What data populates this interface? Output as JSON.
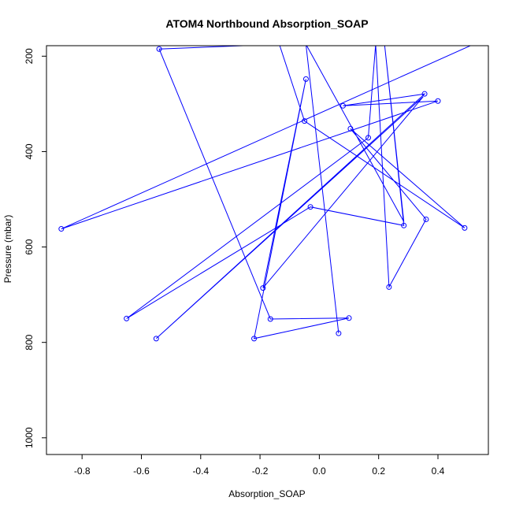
{
  "chart_data": {
    "type": "line",
    "title": "ATOM4 Northbound Absorption_SOAP",
    "xlabel": "Absorption_SOAP",
    "ylabel": "Pressure (mbar)",
    "xlim": [
      -0.92,
      0.57
    ],
    "ylim": [
      1035,
      178
    ],
    "y_reversed": true,
    "grid": false,
    "legend": "none",
    "x_ticks": [
      -0.8,
      -0.6,
      -0.4,
      -0.2,
      0.0,
      0.2,
      0.4
    ],
    "x_tick_labels": [
      "-0.8",
      "-0.6",
      "-0.4",
      "-0.2",
      "0.0",
      "0.2",
      "0.4"
    ],
    "y_ticks": [
      200,
      400,
      600,
      800,
      1000
    ],
    "y_tick_labels": [
      "200",
      "400",
      "600",
      "800",
      "1000"
    ],
    "series": [
      {
        "color": "#0000ff",
        "points": [
          {
            "x": 0.52,
            "y": 175,
            "marker": false
          },
          {
            "x": -0.87,
            "y": 562,
            "marker": true
          },
          {
            "x": 0.4,
            "y": 294,
            "marker": true
          },
          {
            "x": 0.08,
            "y": 304,
            "marker": true
          },
          {
            "x": 0.355,
            "y": 279,
            "marker": true
          },
          {
            "x": -0.55,
            "y": 792,
            "marker": true
          },
          {
            "x": 0.35,
            "y": 285,
            "marker": false
          },
          {
            "x": -0.19,
            "y": 686,
            "marker": true
          },
          {
            "x": -0.045,
            "y": 248,
            "marker": true
          },
          {
            "x": -0.22,
            "y": 792,
            "marker": true
          },
          {
            "x": 0.1,
            "y": 749,
            "marker": true
          },
          {
            "x": -0.165,
            "y": 751,
            "marker": true
          },
          {
            "x": -0.54,
            "y": 185,
            "marker": true
          },
          {
            "x": -0.135,
            "y": 175,
            "marker": false
          },
          {
            "x": -0.05,
            "y": 336,
            "marker": true
          },
          {
            "x": 0.49,
            "y": 560,
            "marker": true
          },
          {
            "x": 0.105,
            "y": 352,
            "marker": true
          },
          {
            "x": 0.36,
            "y": 542,
            "marker": true
          },
          {
            "x": 0.235,
            "y": 684,
            "marker": true
          },
          {
            "x": 0.19,
            "y": 175,
            "marker": false
          },
          {
            "x": 0.165,
            "y": 371,
            "marker": true
          },
          {
            "x": -0.65,
            "y": 750,
            "marker": true
          },
          {
            "x": -0.03,
            "y": 516,
            "marker": true
          },
          {
            "x": 0.285,
            "y": 555,
            "marker": true
          },
          {
            "x": 0.22,
            "y": 175,
            "marker": false
          },
          {
            "x": 0.285,
            "y": 547,
            "marker": false
          },
          {
            "x": -0.045,
            "y": 175,
            "marker": false
          },
          {
            "x": 0.065,
            "y": 781,
            "marker": true
          }
        ]
      }
    ]
  }
}
